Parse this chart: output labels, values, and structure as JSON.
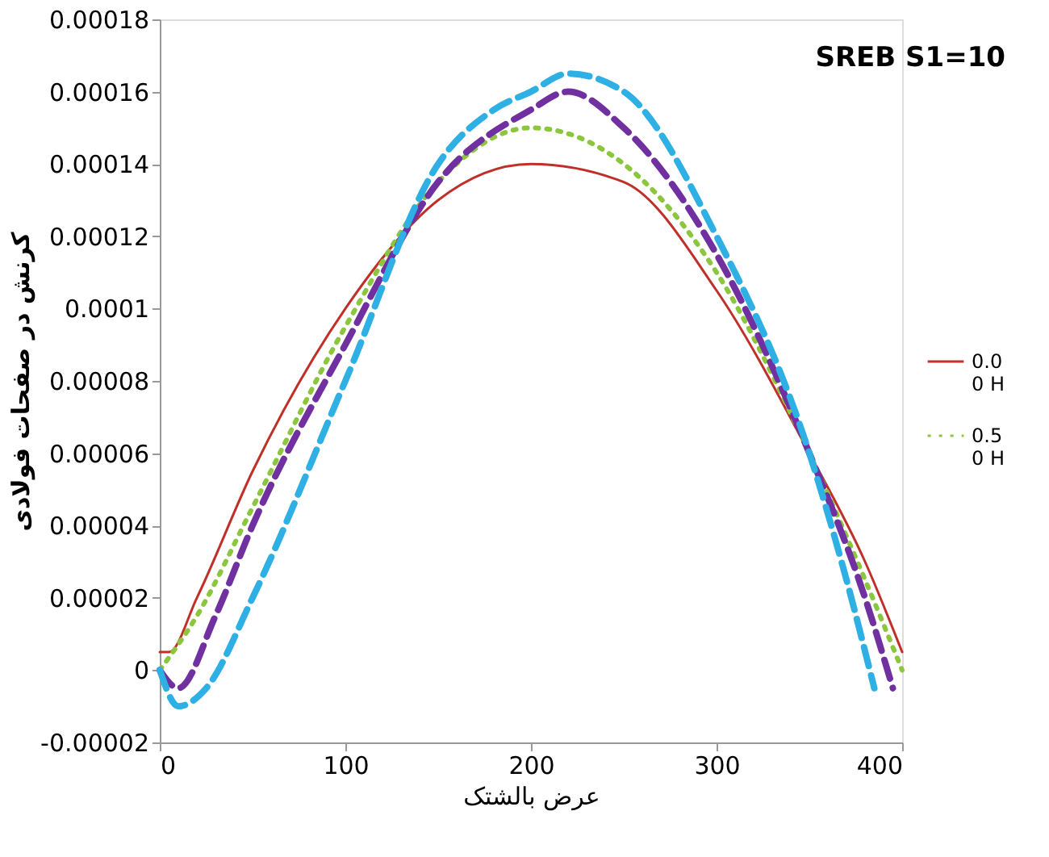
{
  "chart_data": {
    "type": "line",
    "title": "SREB S1=10",
    "xlabel": "عرض بالشتک",
    "ylabel": "کرنش در صفحات فولادی",
    "xlim": [
      0,
      400
    ],
    "xticks": [
      0,
      100,
      200,
      300,
      400
    ],
    "ylim": [
      -2e-05,
      0.00018
    ],
    "yticks": [
      {
        "value": -2e-05,
        "label": "-0.00002"
      },
      0,
      {
        "value": 2e-05,
        "label": "0.00002"
      },
      {
        "value": 4e-05,
        "label": "0.00004"
      },
      {
        "value": 6e-05,
        "label": "0.00006"
      },
      {
        "value": 8e-05,
        "label": "0.00008"
      },
      0.0001,
      0.00012,
      0.00014,
      0.00016,
      0.00018
    ],
    "grid": false,
    "legend": "right",
    "marker": "none",
    "series": [
      {
        "name": "0.0\n0 H",
        "color": "#c0302a",
        "line_style": "solid",
        "x": [
          0,
          5,
          20,
          50,
          100,
          150,
          200,
          250,
          300,
          350,
          380,
          400
        ],
        "values": [
          5e-06,
          5e-06,
          2e-05,
          5.5e-05,
          0.0001,
          0.00013,
          0.00014,
          0.000135,
          0.000105,
          6e-05,
          3e-05,
          5e-06
        ]
      },
      {
        "name": "0.5\n0 H",
        "color": "#8cc63f",
        "line_style": "dotted",
        "x": [
          0,
          20,
          50,
          100,
          150,
          200,
          250,
          300,
          350,
          380,
          400
        ],
        "values": [
          0,
          1.5e-05,
          4.5e-05,
          9.5e-05,
          0.000135,
          0.00015,
          0.00014,
          0.00011,
          6e-05,
          2.5e-05,
          0
        ]
      },
      {
        "color": "#7030a0",
        "line_style": "dashed",
        "x": [
          0,
          10,
          30,
          50,
          100,
          150,
          200,
          220,
          250,
          300,
          350,
          380,
          395
        ],
        "values": [
          0,
          -5e-06,
          1.5e-05,
          4e-05,
          9e-05,
          0.000135,
          0.000155,
          0.00016,
          0.00015,
          0.000115,
          6e-05,
          2e-05,
          -5e-06
        ]
      },
      {
        "color": "#2eb0e4",
        "line_style": "dashed",
        "x": [
          0,
          10,
          25,
          50,
          100,
          150,
          180,
          200,
          220,
          250,
          300,
          350,
          370,
          385
        ],
        "values": [
          0,
          -1e-05,
          -5e-06,
          2e-05,
          8e-05,
          0.00014,
          0.000155,
          0.00016,
          0.000165,
          0.00016,
          0.00012,
          6e-05,
          2.5e-05,
          -5e-06
        ]
      }
    ]
  }
}
